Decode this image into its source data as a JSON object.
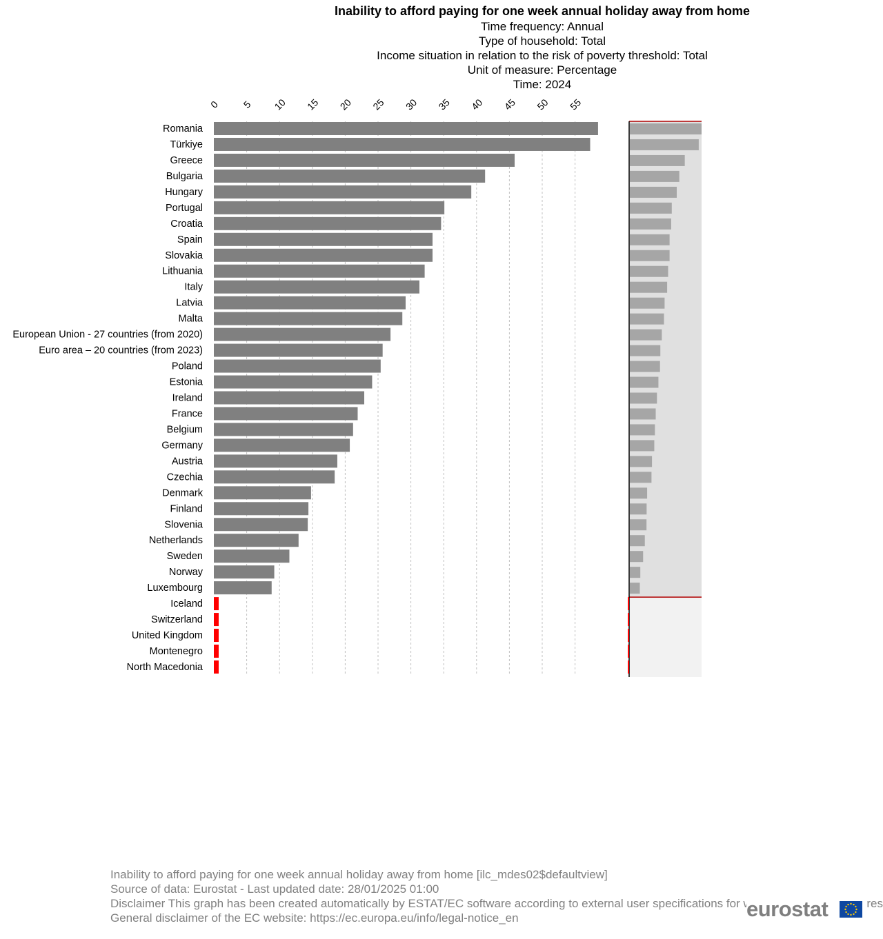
{
  "chart_data": {
    "type": "bar",
    "orientation": "horizontal",
    "title": "Inability to afford paying for one week annual holiday away from home",
    "subtitles": [
      "Time frequency:  Annual",
      "Type of household:  Total",
      "Income situation in relation to the risk of poverty threshold:  Total",
      "Unit of measure:  Percentage",
      "Time:  2024"
    ],
    "xlim": [
      0,
      60
    ],
    "xticks": [
      "0",
      "5",
      "10",
      "15",
      "20",
      "25",
      "30",
      "35",
      "40",
      "45",
      "50",
      "55"
    ],
    "grid": true,
    "categories": [
      "Romania",
      "Türkiye",
      "Greece",
      "Bulgaria",
      "Hungary",
      "Portugal",
      "Croatia",
      "Spain",
      "Slovakia",
      "Lithuania",
      "Italy",
      "Latvia",
      "Malta",
      "European Union - 27 countries (from 2020)",
      "Euro area – 20 countries (from 2023)",
      "Poland",
      "Estonia",
      "Ireland",
      "France",
      "Belgium",
      "Germany",
      "Austria",
      "Czechia",
      "Denmark",
      "Finland",
      "Slovenia",
      "Netherlands",
      "Sweden",
      "Norway",
      "Luxembourg",
      "Iceland",
      "Switzerland",
      "United Kingdom",
      "Montenegro",
      "North Macedonia"
    ],
    "values": [
      58.5,
      57.3,
      45.8,
      41.3,
      39.2,
      35.1,
      34.6,
      33.3,
      33.3,
      32.1,
      31.3,
      29.2,
      28.7,
      26.9,
      25.7,
      25.4,
      24.1,
      22.9,
      21.9,
      21.2,
      20.7,
      18.8,
      18.4,
      14.8,
      14.4,
      14.3,
      12.9,
      11.5,
      9.2,
      8.8,
      0,
      0,
      0,
      0,
      0
    ],
    "missing": [
      "Iceland",
      "Switzerland",
      "United Kingdom",
      "Montenegro",
      "North Macedonia"
    ],
    "colors": {
      "bar": "#808080",
      "missing": "#ff0000",
      "overview_bar": "#a6a6a6",
      "overview_bg": "#e0e0e0",
      "overview_bg_out": "#f2f2f2",
      "overview_frame": "#b00000",
      "grid": "#c0c0c0"
    }
  },
  "footer": {
    "line1": "Inability to afford paying for one week annual holiday away from home [ilc_mdes02$defaultview]",
    "line2": "Source of data: Eurostat - Last updated date: 28/01/2025 01:00",
    "line3": "Disclaimer This graph has been created automatically by ESTAT/EC software according to external user specifications for which ESTAT/EC is not responsible.",
    "line4": "General disclaimer of the EC website: https://ec.europa.eu/info/legal-notice_en"
  },
  "logo": {
    "text": "eurostat"
  }
}
